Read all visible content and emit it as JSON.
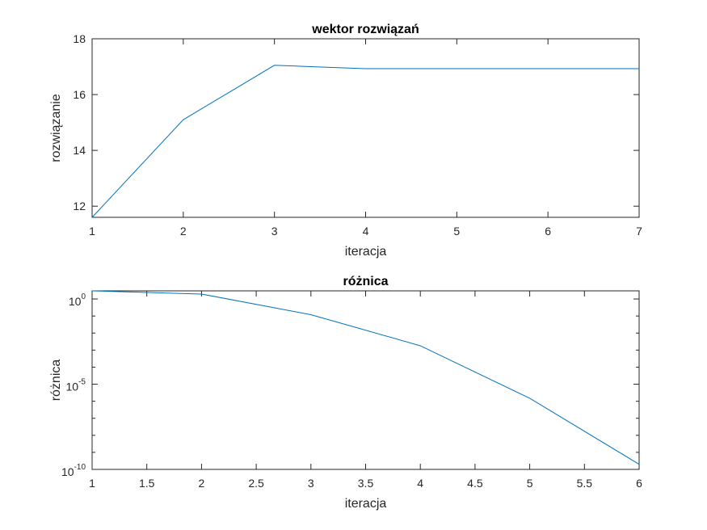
{
  "chart_data": [
    {
      "type": "line",
      "title": "wektor rozwiązań",
      "xlabel": "iteracja",
      "ylabel": "rozwiązanie",
      "xlim": [
        1,
        7
      ],
      "ylim": [
        11.6,
        18
      ],
      "yscale": "linear",
      "xticks": [
        1,
        2,
        3,
        4,
        5,
        6,
        7
      ],
      "yticks": [
        12,
        14,
        16,
        18
      ],
      "xtick_labels": [
        "1",
        "2",
        "3",
        "4",
        "5",
        "6",
        "7"
      ],
      "ytick_labels": [
        "12",
        "14",
        "16",
        "18"
      ],
      "grid": false,
      "series": [
        {
          "color": "#0072bd",
          "x": [
            1,
            2,
            3,
            4,
            5,
            6,
            7
          ],
          "y": [
            11.6,
            15.1,
            17.05,
            16.93,
            16.93,
            16.93,
            16.93
          ]
        }
      ]
    },
    {
      "type": "line",
      "title": "różnica",
      "xlabel": "iteracja",
      "ylabel": "różnica",
      "xlim": [
        1,
        6
      ],
      "ylim": [
        1e-10,
        3
      ],
      "yscale": "log",
      "xticks": [
        1,
        1.5,
        2,
        2.5,
        3,
        3.5,
        4,
        4.5,
        5,
        5.5,
        6
      ],
      "xtick_labels": [
        "1",
        "1.5",
        "2",
        "2.5",
        "3",
        "3.5",
        "4",
        "4.5",
        "5",
        "5.5",
        "6"
      ],
      "yticks": [
        1,
        1e-05,
        1e-10
      ],
      "ytick_labels": [
        {
          "base": "10",
          "exp": "0"
        },
        {
          "base": "10",
          "exp": "-5"
        },
        {
          "base": "10",
          "exp": "-10"
        }
      ],
      "grid": false,
      "series": [
        {
          "color": "#0072bd",
          "x": [
            1,
            2,
            3,
            4,
            5,
            6
          ],
          "y": [
            3.5,
            1.95,
            0.12,
            0.0018,
            1.5e-06,
            2e-10
          ]
        }
      ]
    }
  ]
}
